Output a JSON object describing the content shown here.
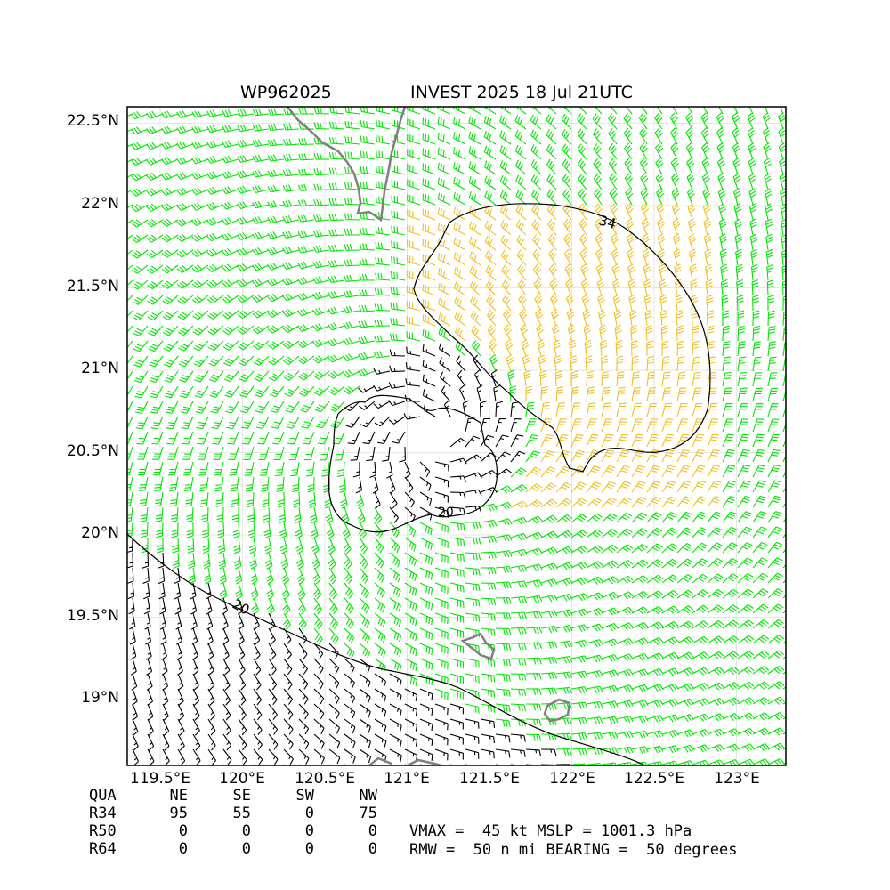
{
  "title": {
    "id": "WP962025",
    "text": "INVEST 2025 18 Jul 21UTC"
  },
  "map": {
    "lat_range": [
      18.6,
      22.6
    ],
    "lon_range": [
      119.3,
      123.3
    ],
    "lat_ticks": [
      "22.5°N",
      "22°N",
      "21.5°N",
      "21°N",
      "20.5°N",
      "20°N",
      "19.5°N",
      "19°N"
    ],
    "lat_tick_values": [
      22.5,
      22.0,
      21.5,
      21.0,
      20.5,
      20.0,
      19.5,
      19.0
    ],
    "lon_ticks": [
      "119.5°E",
      "120°E",
      "120.5°E",
      "121°E",
      "121.5°E",
      "122°E",
      "122.5°E",
      "123°E"
    ],
    "lon_tick_values": [
      119.5,
      120.0,
      120.5,
      121.0,
      121.5,
      122.0,
      122.5,
      123.0
    ],
    "storm_center": {
      "lat": 20.6,
      "lon": 121.15
    },
    "contour_labels": [
      "34",
      "20",
      "20"
    ],
    "colors": {
      "barb_below_34": "#00e600",
      "barb_34_to_50": "#f0c020",
      "barb_weak": "#000000",
      "coastline": "#808080",
      "contour": "#000000"
    }
  },
  "table": {
    "header": [
      "QUA",
      "NE",
      "SE",
      "SW",
      "NW"
    ],
    "rows": [
      [
        "R34",
        "95",
        "55",
        "0",
        "75"
      ],
      [
        "R50",
        "0",
        "0",
        "0",
        "0"
      ],
      [
        "R64",
        "0",
        "0",
        "0",
        "0"
      ]
    ]
  },
  "stats": {
    "line1": "VMAX =  45 kt MSLP = 1001.3 hPa",
    "line2": "RMW =  50 n mi BEARING =  50 degrees"
  }
}
